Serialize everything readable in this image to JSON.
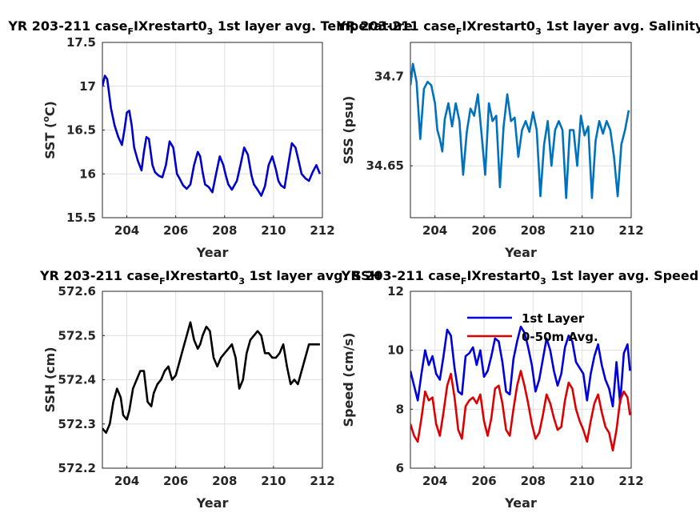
{
  "chart_data": [
    {
      "type": "line",
      "title": {
        "main": "YR 203-211 case",
        "sub1": "F",
        "mid": "IXrestart0",
        "sub2": "3",
        "tail": " 1st layer avg. Temperature"
      },
      "xlabel": "Year",
      "ylabel": {
        "main": "SST (",
        "sup": "o",
        "tail": "C)"
      },
      "xlim": [
        203,
        212
      ],
      "ylim": [
        15.5,
        17.5
      ],
      "xticks": [
        204,
        206,
        208,
        210,
        212
      ],
      "yticks": [
        15.5,
        16,
        16.5,
        17,
        17.5
      ],
      "ytick_labels": [
        "15.5",
        "16",
        "16.5",
        "17",
        "17.5"
      ],
      "grid": true,
      "series": [
        {
          "color": "#0000cc",
          "x": [
            203.0,
            203.1,
            203.2,
            203.35,
            203.5,
            203.65,
            203.8,
            203.9,
            204.0,
            204.1,
            204.2,
            204.3,
            204.45,
            204.6,
            204.7,
            204.8,
            204.9,
            205.05,
            205.15,
            205.3,
            205.45,
            205.6,
            205.75,
            205.9,
            206.05,
            206.15,
            206.3,
            206.45,
            206.6,
            206.75,
            206.9,
            207.0,
            207.1,
            207.2,
            207.35,
            207.5,
            207.65,
            207.8,
            207.95,
            208.05,
            208.15,
            208.3,
            208.5,
            208.65,
            208.8,
            208.95,
            209.1,
            209.2,
            209.35,
            209.5,
            209.65,
            209.8,
            209.95,
            210.1,
            210.2,
            210.3,
            210.45,
            210.6,
            210.75,
            210.9,
            211.05,
            211.15,
            211.3,
            211.45,
            211.6,
            211.75,
            211.9
          ],
          "values": [
            17.0,
            17.12,
            17.08,
            16.75,
            16.55,
            16.42,
            16.33,
            16.5,
            16.7,
            16.72,
            16.55,
            16.3,
            16.15,
            16.04,
            16.25,
            16.42,
            16.4,
            16.1,
            16.02,
            15.98,
            15.96,
            16.1,
            16.37,
            16.3,
            16.0,
            15.95,
            15.87,
            15.83,
            15.88,
            16.1,
            16.25,
            16.2,
            16.02,
            15.88,
            15.85,
            15.79,
            16.0,
            16.2,
            16.1,
            15.98,
            15.88,
            15.82,
            15.92,
            16.1,
            16.3,
            16.22,
            15.98,
            15.88,
            15.82,
            15.75,
            15.86,
            16.1,
            16.2,
            16.05,
            15.92,
            15.87,
            15.84,
            16.1,
            16.35,
            16.3,
            16.12,
            16.0,
            15.95,
            15.92,
            16.02,
            16.1,
            16.0
          ]
        }
      ]
    },
    {
      "type": "line",
      "title": {
        "main": "YR 203-211 case",
        "sub1": "F",
        "mid": "IXrestart0",
        "sub2": "3",
        "tail": " 1st layer avg. Salinity"
      },
      "xlabel": "Year",
      "ylabel": {
        "main": "SSS (psu)",
        "sup": "",
        "tail": ""
      },
      "xlim": [
        203,
        212
      ],
      "ylim": [
        34.621,
        34.719
      ],
      "xticks": [
        204,
        206,
        208,
        210,
        212
      ],
      "yticks": [
        34.65,
        34.7
      ],
      "ytick_labels": [
        "34.65",
        "34.7"
      ],
      "grid": true,
      "series": [
        {
          "color": "#0072bd",
          "x": [
            203.0,
            203.1,
            203.25,
            203.4,
            203.55,
            203.7,
            203.85,
            204.0,
            204.1,
            204.2,
            204.3,
            204.4,
            204.55,
            204.7,
            204.85,
            205.0,
            205.15,
            205.3,
            205.45,
            205.6,
            205.75,
            205.9,
            206.05,
            206.2,
            206.35,
            206.5,
            206.65,
            206.8,
            206.95,
            207.1,
            207.25,
            207.4,
            207.55,
            207.7,
            207.85,
            208.0,
            208.15,
            208.3,
            208.45,
            208.6,
            208.75,
            208.9,
            209.05,
            209.2,
            209.35,
            209.5,
            209.65,
            209.8,
            209.95,
            210.1,
            210.25,
            210.4,
            210.55,
            210.7,
            210.85,
            211.0,
            211.15,
            211.3,
            211.45,
            211.6,
            211.75,
            211.9
          ],
          "values": [
            34.695,
            34.707,
            34.697,
            34.665,
            34.693,
            34.697,
            34.695,
            34.685,
            34.67,
            34.665,
            34.658,
            34.676,
            34.685,
            34.672,
            34.685,
            34.675,
            34.645,
            34.669,
            34.682,
            34.678,
            34.69,
            34.668,
            34.645,
            34.685,
            34.675,
            34.678,
            34.638,
            34.672,
            34.69,
            34.675,
            34.677,
            34.655,
            34.67,
            34.675,
            34.669,
            34.68,
            34.67,
            34.633,
            34.662,
            34.675,
            34.65,
            34.67,
            34.675,
            34.67,
            34.632,
            34.67,
            34.67,
            34.65,
            34.678,
            34.667,
            34.672,
            34.632,
            34.664,
            34.675,
            34.668,
            34.675,
            34.67,
            34.655,
            34.633,
            34.662,
            34.67,
            34.681
          ]
        }
      ]
    },
    {
      "type": "line",
      "title": {
        "main": "YR 203-211 case",
        "sub1": "F",
        "mid": "IXrestart0",
        "sub2": "3",
        "tail": " 1st layer avg. SSH"
      },
      "xlabel": "Year",
      "ylabel": {
        "main": "SSH (cm)",
        "sup": "",
        "tail": ""
      },
      "xlim": [
        203,
        212
      ],
      "ylim": [
        572.2,
        572.6
      ],
      "xticks": [
        204,
        206,
        208,
        210,
        212
      ],
      "yticks": [
        572.2,
        572.3,
        572.4,
        572.5,
        572.6
      ],
      "ytick_labels": [
        "572.2",
        "572.3",
        "572.4",
        "572.5",
        "572.6"
      ],
      "grid": true,
      "series": [
        {
          "color": "#000000",
          "x": [
            203.0,
            203.15,
            203.3,
            203.45,
            203.6,
            203.75,
            203.85,
            204.0,
            204.1,
            204.25,
            204.4,
            204.55,
            204.7,
            204.85,
            205.0,
            205.1,
            205.25,
            205.4,
            205.55,
            205.7,
            205.85,
            206.0,
            206.15,
            206.3,
            206.45,
            206.6,
            206.75,
            206.9,
            207.0,
            207.1,
            207.25,
            207.4,
            207.55,
            207.7,
            207.85,
            208.0,
            208.15,
            208.3,
            208.45,
            208.6,
            208.75,
            208.9,
            209.05,
            209.2,
            209.35,
            209.5,
            209.65,
            209.8,
            209.95,
            210.1,
            210.25,
            210.4,
            210.55,
            210.7,
            210.85,
            211.0,
            211.15,
            211.3,
            211.45,
            211.6,
            211.75,
            211.9
          ],
          "values": [
            572.29,
            572.28,
            572.3,
            572.35,
            572.38,
            572.36,
            572.32,
            572.31,
            572.33,
            572.38,
            572.4,
            572.42,
            572.42,
            572.35,
            572.34,
            572.37,
            572.39,
            572.4,
            572.42,
            572.43,
            572.4,
            572.41,
            572.44,
            572.47,
            572.5,
            572.53,
            572.49,
            572.47,
            572.48,
            572.5,
            572.52,
            572.51,
            572.45,
            572.43,
            572.45,
            572.46,
            572.47,
            572.48,
            572.45,
            572.38,
            572.4,
            572.46,
            572.49,
            572.5,
            572.51,
            572.5,
            572.46,
            572.46,
            572.45,
            572.45,
            572.46,
            572.48,
            572.43,
            572.39,
            572.4,
            572.39,
            572.42,
            572.45,
            572.48,
            572.48,
            572.48,
            572.48
          ]
        }
      ]
    },
    {
      "type": "line",
      "title": {
        "main": "YR 203-211 case",
        "sub1": "F",
        "mid": "IXrestart0",
        "sub2": "3",
        "tail": " 1st layer avg. Speed"
      },
      "xlabel": "Year",
      "ylabel": {
        "main": "Speed (cm/s)",
        "sup": "",
        "tail": ""
      },
      "xlim": [
        203,
        212
      ],
      "ylim": [
        6,
        12
      ],
      "xticks": [
        204,
        206,
        208,
        210,
        212
      ],
      "yticks": [
        6,
        8,
        10,
        12
      ],
      "ytick_labels": [
        "6",
        "8",
        "10",
        "12"
      ],
      "grid": true,
      "legend": {
        "position": "top-center",
        "entries": [
          "1st Layer",
          "0-50m Avg."
        ]
      },
      "series": [
        {
          "name": "1st Layer",
          "color": "#0000dd",
          "x": [
            203.0,
            203.15,
            203.3,
            203.45,
            203.6,
            203.75,
            203.9,
            204.05,
            204.2,
            204.35,
            204.5,
            204.65,
            204.8,
            204.95,
            205.1,
            205.25,
            205.4,
            205.55,
            205.7,
            205.85,
            206.0,
            206.15,
            206.3,
            206.45,
            206.6,
            206.75,
            206.9,
            207.05,
            207.2,
            207.35,
            207.5,
            207.65,
            207.8,
            207.95,
            208.1,
            208.25,
            208.4,
            208.55,
            208.7,
            208.85,
            209.0,
            209.15,
            209.3,
            209.45,
            209.6,
            209.75,
            209.9,
            210.05,
            210.2,
            210.35,
            210.5,
            210.65,
            210.8,
            210.95,
            211.1,
            211.25,
            211.4,
            211.55,
            211.7,
            211.85,
            211.95
          ],
          "values": [
            9.3,
            8.8,
            8.3,
            9.2,
            10.0,
            9.5,
            9.8,
            9.2,
            9.0,
            9.8,
            10.7,
            10.5,
            9.4,
            8.6,
            8.5,
            9.8,
            9.9,
            10.1,
            9.5,
            10.0,
            9.1,
            9.3,
            9.8,
            10.4,
            10.3,
            9.6,
            8.6,
            8.5,
            9.7,
            10.3,
            10.8,
            10.6,
            10.1,
            9.5,
            8.6,
            9.0,
            9.7,
            10.4,
            10.0,
            9.3,
            8.8,
            9.2,
            10.1,
            10.5,
            10.3,
            9.6,
            9.4,
            9.2,
            8.3,
            9.2,
            9.8,
            10.2,
            9.5,
            9.0,
            8.7,
            8.1,
            9.6,
            8.2,
            9.9,
            10.2,
            9.3
          ]
        },
        {
          "name": "0-50m Avg.",
          "color": "#dd0000",
          "x": [
            203.0,
            203.15,
            203.3,
            203.45,
            203.6,
            203.75,
            203.9,
            204.05,
            204.2,
            204.35,
            204.5,
            204.65,
            204.8,
            204.95,
            205.1,
            205.25,
            205.4,
            205.55,
            205.7,
            205.85,
            206.0,
            206.15,
            206.3,
            206.45,
            206.6,
            206.75,
            206.9,
            207.05,
            207.2,
            207.35,
            207.5,
            207.65,
            207.8,
            207.95,
            208.1,
            208.25,
            208.4,
            208.55,
            208.7,
            208.85,
            209.0,
            209.15,
            209.3,
            209.45,
            209.6,
            209.75,
            209.9,
            210.05,
            210.2,
            210.35,
            210.5,
            210.65,
            210.8,
            210.95,
            211.1,
            211.25,
            211.4,
            211.55,
            211.7,
            211.85,
            211.95
          ],
          "values": [
            7.5,
            7.1,
            6.9,
            7.7,
            8.6,
            8.3,
            8.4,
            7.5,
            7.1,
            7.9,
            8.8,
            9.2,
            8.4,
            7.3,
            7.0,
            8.1,
            8.3,
            8.4,
            8.2,
            8.5,
            7.6,
            7.1,
            7.7,
            8.7,
            8.8,
            8.2,
            7.3,
            7.1,
            8.0,
            8.8,
            9.3,
            8.8,
            8.2,
            7.5,
            7.0,
            7.2,
            7.8,
            8.5,
            8.2,
            7.7,
            7.3,
            7.4,
            8.3,
            8.9,
            8.7,
            8.0,
            7.6,
            7.3,
            6.9,
            7.6,
            8.2,
            8.5,
            7.9,
            7.4,
            7.2,
            6.6,
            7.3,
            8.3,
            8.6,
            8.4,
            7.8
          ]
        }
      ]
    }
  ]
}
